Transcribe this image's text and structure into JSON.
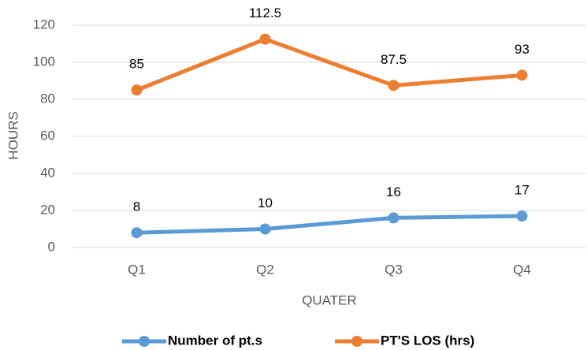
{
  "chart_data": {
    "type": "line",
    "x_label": "QUATER",
    "y_label": "HOURS",
    "categories": [
      "Q1",
      "Q2",
      "Q3",
      "Q4"
    ],
    "series": [
      {
        "name": "Number of pt.s",
        "color": "#5b9bd5",
        "values": [
          8,
          10,
          16,
          17
        ]
      },
      {
        "name": "PT'S LOS (hrs)",
        "color": "#ed7d31",
        "values": [
          85,
          112.5,
          87.5,
          93
        ]
      }
    ],
    "ylim": [
      0,
      120
    ],
    "yticks": [
      0,
      20,
      40,
      60,
      80,
      100,
      120
    ],
    "grid": true,
    "legend": "bottom"
  }
}
